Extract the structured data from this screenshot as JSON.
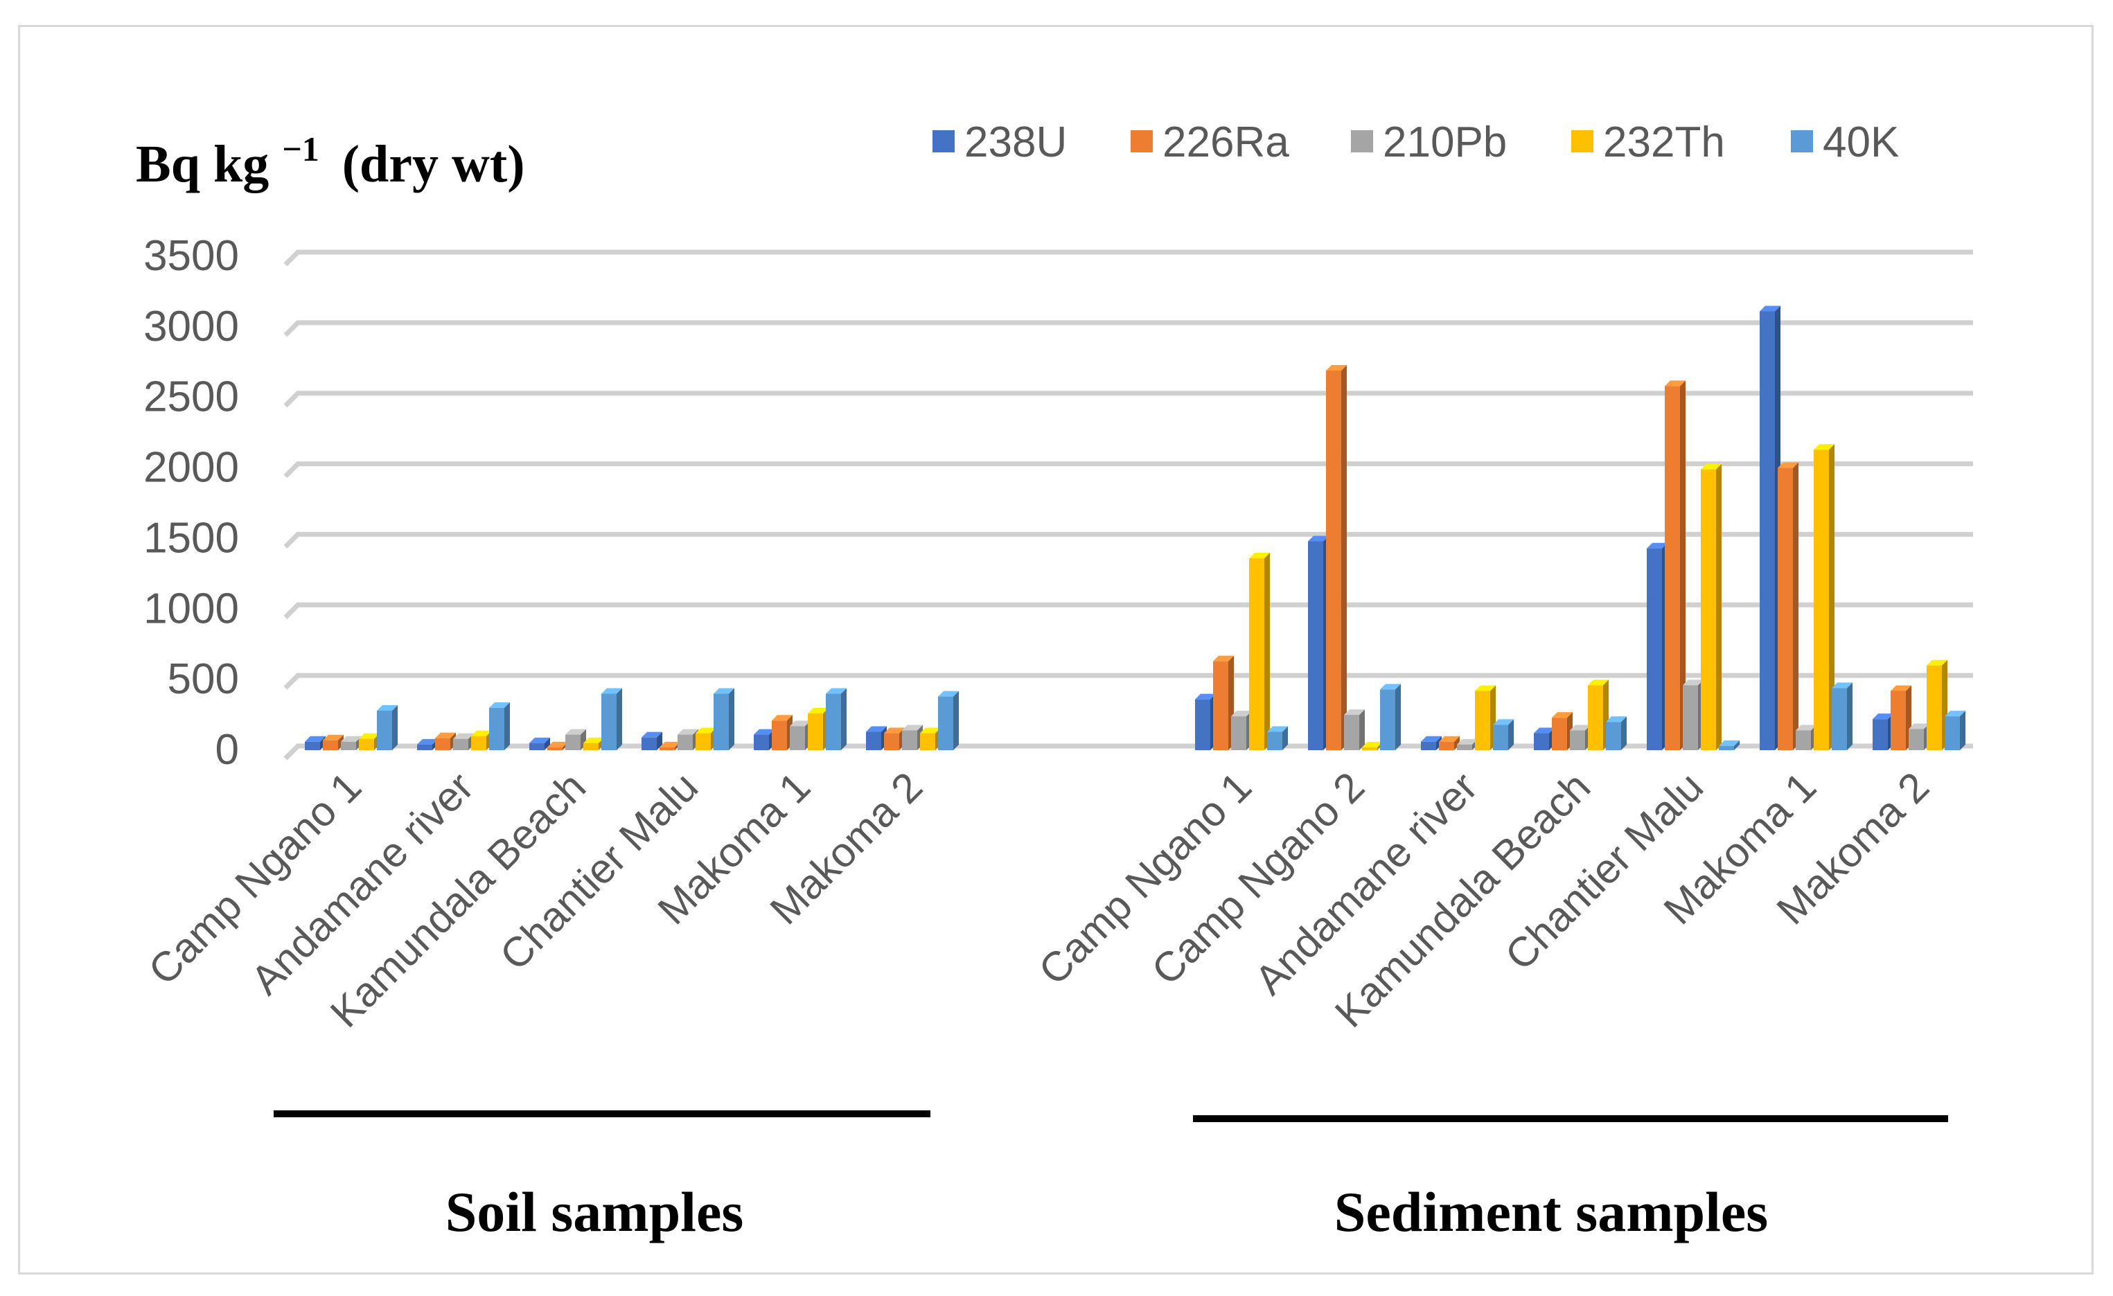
{
  "chart_data": {
    "type": "bar",
    "ylabel": "Bq kg",
    "ylabel_superscript": "−1",
    "ylabel_suffix": "(dry wt)",
    "ylim": [
      0,
      3500
    ],
    "yticks": [
      0,
      500,
      1000,
      1500,
      2000,
      2500,
      3000,
      3500
    ],
    "grid": true,
    "legend_position": "top-right",
    "series": [
      {
        "name": "238U",
        "color": "#4472c4"
      },
      {
        "name": "226Ra",
        "color": "#ed7d31"
      },
      {
        "name": "210Pb",
        "color": "#a5a5a5"
      },
      {
        "name": "232Th",
        "color": "#ffc000"
      },
      {
        "name": "40K",
        "color": "#5b9bd5"
      }
    ],
    "groups": [
      {
        "label": "Soil samples",
        "categories": [
          "Camp Ngano 1",
          "Andamane river",
          "Kamundala Beach",
          "Chantier Malu",
          "Makoma 1",
          "Makoma 2"
        ],
        "values": {
          "238U": [
            60,
            40,
            50,
            90,
            110,
            130
          ],
          "226Ra": [
            70,
            85,
            20,
            20,
            210,
            120
          ],
          "210Pb": [
            60,
            80,
            110,
            110,
            170,
            140
          ],
          "232Th": [
            80,
            100,
            50,
            120,
            260,
            120
          ],
          "40K": [
            280,
            300,
            400,
            400,
            400,
            380
          ]
        }
      },
      {
        "label": "Sediment samples",
        "categories": [
          "Camp Ngano 1",
          "Camp Ngano 2",
          "Andamane river",
          "Kamundala Beach",
          "Chantier Malu",
          "Makoma 1",
          "Makoma 2"
        ],
        "values": {
          "238U": [
            360,
            1480,
            60,
            120,
            1430,
            3110,
            220
          ],
          "226Ra": [
            630,
            2690,
            60,
            230,
            2580,
            2000,
            420
          ],
          "210Pb": [
            240,
            250,
            40,
            140,
            460,
            140,
            150
          ],
          "232Th": [
            1360,
            20,
            420,
            460,
            1990,
            2130,
            600
          ],
          "40K": [
            130,
            430,
            180,
            200,
            30,
            440,
            240
          ]
        }
      }
    ]
  }
}
